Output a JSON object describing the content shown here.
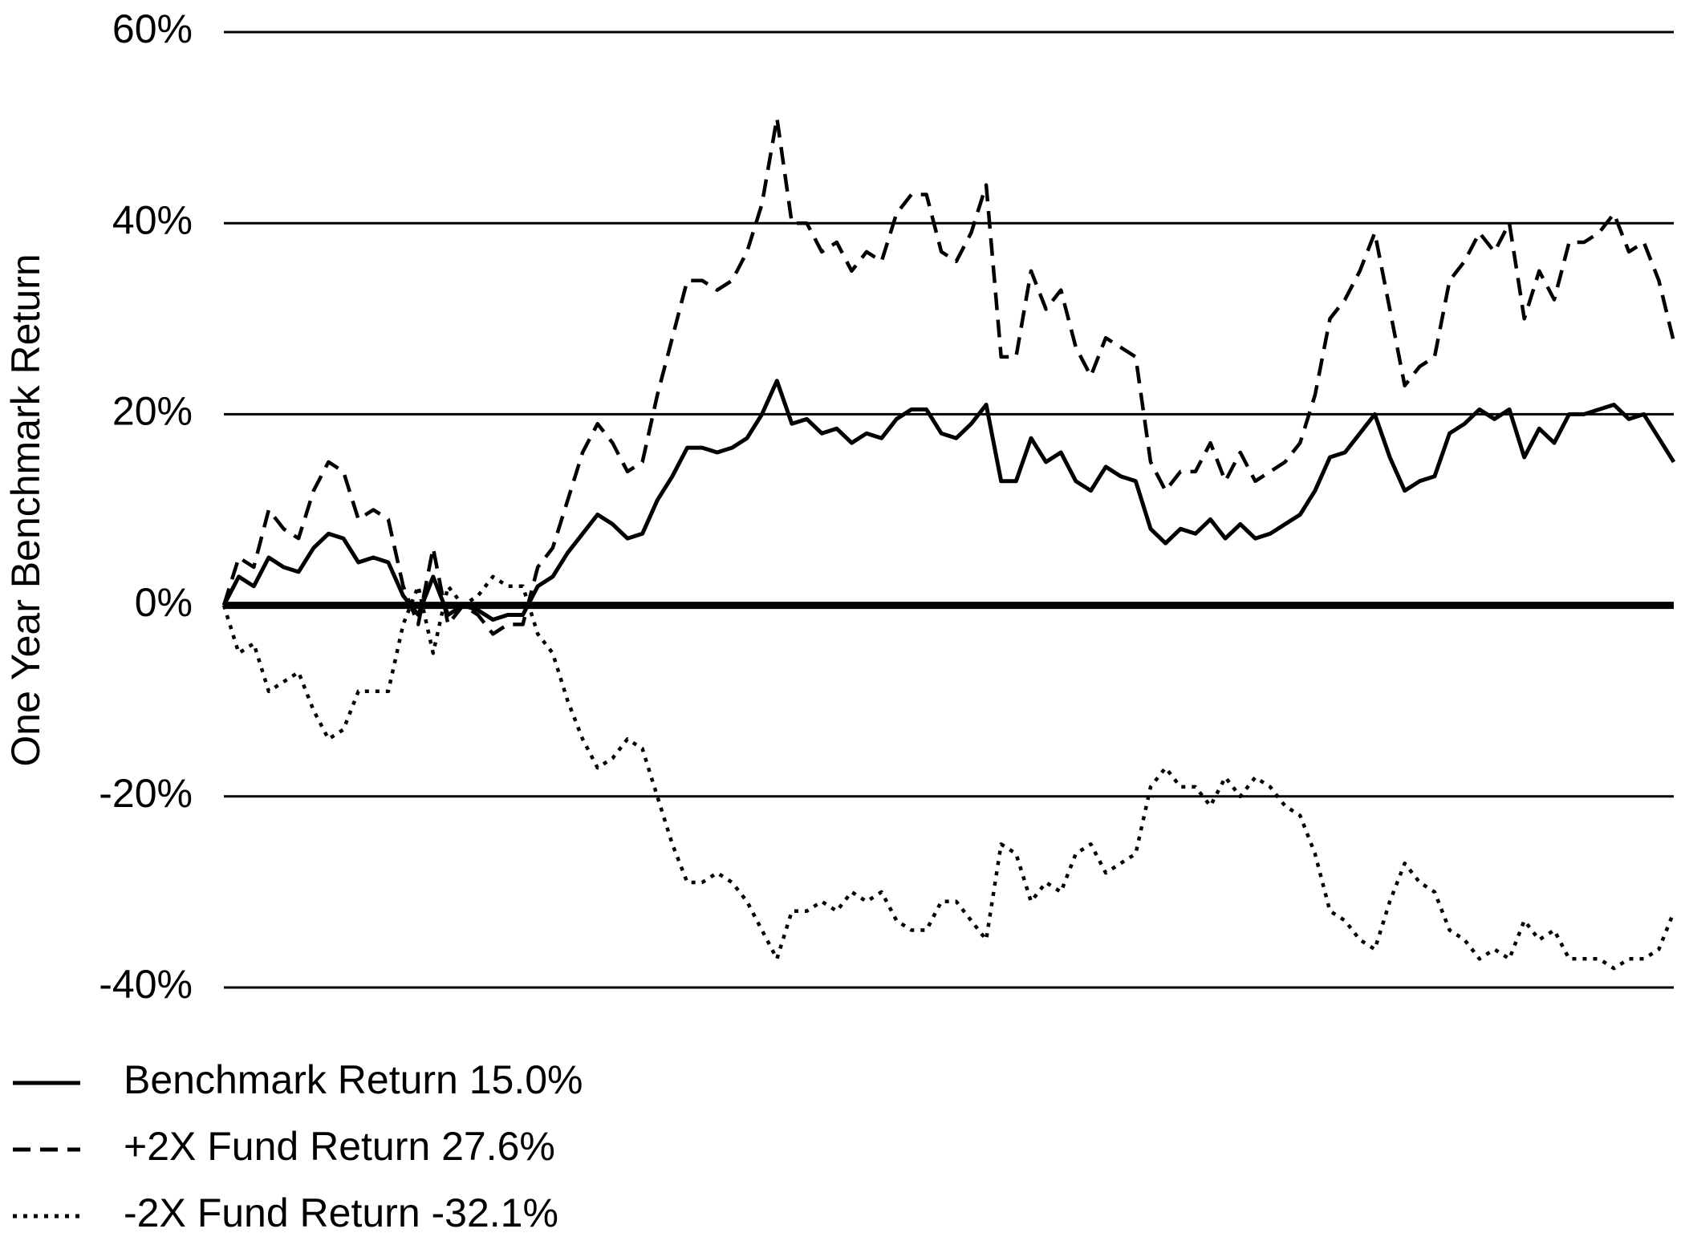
{
  "chart_data": {
    "type": "line",
    "y_label": "One Year Benchmark Return",
    "ylim": [
      -40,
      60
    ],
    "yticks": [
      {
        "value": 60,
        "label": "60%"
      },
      {
        "value": 40,
        "label": "40%"
      },
      {
        "value": 20,
        "label": "20%"
      },
      {
        "value": 0,
        "label": "0%"
      },
      {
        "value": -20,
        "label": "-20%"
      },
      {
        "value": -40,
        "label": "-40%"
      }
    ],
    "grid": true,
    "series": [
      {
        "name": "Benchmark Return 15.0%",
        "color": "#000000",
        "line_style": "solid",
        "values": [
          0,
          3,
          2,
          5,
          4,
          3.5,
          6,
          7.5,
          7,
          4.5,
          5,
          4.5,
          1,
          -1,
          3,
          -1,
          0,
          -0.5,
          -1.5,
          -1,
          -1,
          2,
          3,
          5.5,
          7.5,
          9.5,
          8.5,
          7,
          7.5,
          11,
          13.5,
          16.5,
          16.5,
          16,
          16.5,
          17.5,
          20,
          23.5,
          19,
          19.5,
          18,
          18.5,
          17,
          18,
          17.5,
          19.5,
          20.5,
          20.5,
          18,
          17.5,
          19,
          21,
          13,
          13,
          17.5,
          15,
          16,
          13,
          12,
          14.5,
          13.5,
          13,
          8,
          6.5,
          8,
          7.5,
          9,
          7,
          8.5,
          7,
          7.5,
          8.5,
          9.5,
          12,
          15.5,
          16,
          18,
          20,
          15.5,
          12,
          13,
          13.5,
          18,
          19,
          20.5,
          19.5,
          20.5,
          15.5,
          18.5,
          17,
          20,
          20,
          20.5,
          21,
          19.5,
          20,
          17.5,
          15
        ]
      },
      {
        "name": "+2X Fund Return 27.6%",
        "color": "#000000",
        "line_style": "dashed",
        "values": [
          0,
          5,
          4,
          10,
          8,
          7,
          12,
          15,
          14,
          9,
          10,
          9,
          2,
          -2,
          6,
          -2,
          0,
          -1,
          -3,
          -2,
          -2,
          4,
          6,
          11,
          16,
          19,
          17,
          14,
          15,
          22,
          28,
          34,
          34,
          33,
          34,
          37,
          42,
          51,
          40,
          40,
          37,
          38,
          35,
          37,
          36,
          41,
          43,
          43,
          37,
          36,
          39,
          44,
          26,
          26,
          35,
          31,
          33,
          27,
          24,
          28,
          27,
          26,
          15,
          12,
          14,
          14,
          17,
          13,
          16,
          13,
          14,
          15,
          17,
          22,
          30,
          32,
          35,
          39,
          31,
          23,
          25,
          26,
          34,
          36,
          39,
          37,
          40,
          30,
          35,
          32,
          38,
          38,
          39,
          41,
          37,
          38,
          34,
          27.6
        ]
      },
      {
        "name": "-2X Fund Return -32.1%",
        "color": "#000000",
        "line_style": "dotted",
        "values": [
          0,
          -5,
          -4,
          -9,
          -8,
          -7,
          -11,
          -14,
          -13,
          -9,
          -9,
          -9,
          -2,
          2,
          -5,
          2,
          0,
          1,
          3,
          2,
          2,
          -3,
          -5,
          -10,
          -14,
          -17,
          -16,
          -14,
          -15,
          -20,
          -25,
          -29,
          -29,
          -28,
          -29,
          -31,
          -34,
          -37,
          -32,
          -32,
          -31,
          -32,
          -30,
          -31,
          -30,
          -33,
          -34,
          -34,
          -31,
          -31,
          -33,
          -35,
          -25,
          -26,
          -31,
          -29,
          -30,
          -26,
          -25,
          -28,
          -27,
          -26,
          -19,
          -17,
          -19,
          -19,
          -21,
          -18,
          -20,
          -18,
          -19,
          -21,
          -22,
          -26,
          -32,
          -33,
          -35,
          -36,
          -31,
          -27,
          -29,
          -30,
          -34,
          -35,
          -37,
          -36,
          -37,
          -33,
          -35,
          -34,
          -37,
          -37,
          -37,
          -38,
          -37,
          -37,
          -36,
          -32.1
        ]
      }
    ]
  }
}
